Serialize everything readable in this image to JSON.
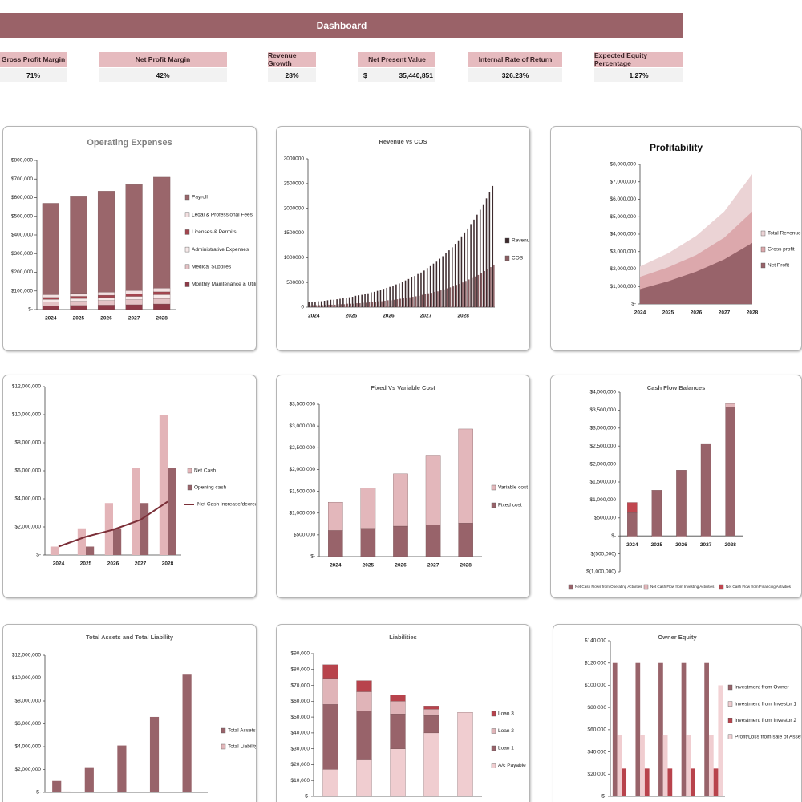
{
  "dashboard": {
    "title": "Dashboard",
    "kpis": [
      {
        "label": "Gross Profit Margin",
        "value": "71%"
      },
      {
        "label": "Net Profit Margin",
        "value": "42%"
      },
      {
        "label": "Revenue Growth",
        "value": "28%"
      },
      {
        "label": "Net Present Value",
        "currency": "$",
        "value": "35,440,851"
      },
      {
        "label": "Internal Rate of Return",
        "value": "326.23%"
      },
      {
        "label": "Expected Equity Percentage",
        "value": "1.27%"
      }
    ]
  },
  "chart_data": [
    {
      "type": "bar",
      "title": "Operating Expenses",
      "stacked": true,
      "legend": "right",
      "categories": [
        "2024",
        "2025",
        "2026",
        "2027",
        "2028"
      ],
      "series": [
        {
          "name": "Monthly Maintenance & Utilities",
          "color": "#8e3a48",
          "values": [
            20000,
            22000,
            24000,
            26000,
            30000
          ]
        },
        {
          "name": "Medical Supplies",
          "color": "#e4c2c5",
          "values": [
            20000,
            22000,
            24000,
            27000,
            30000
          ]
        },
        {
          "name": "Administrative Expenses",
          "color": "#f7eaea",
          "values": [
            15000,
            16000,
            17000,
            18000,
            20000
          ]
        },
        {
          "name": "Licenses & Permits",
          "color": "#a4454f",
          "values": [
            10000,
            11000,
            12000,
            13000,
            15000
          ]
        },
        {
          "name": "Legal & Professional Fees",
          "color": "#f3e0e1",
          "values": [
            15000,
            16000,
            17000,
            18000,
            20000
          ]
        },
        {
          "name": "Payroll",
          "color": "#9a666b",
          "values": [
            490000,
            518000,
            541000,
            568000,
            595000
          ]
        }
      ],
      "ylim": [
        0,
        800000
      ],
      "yticks": [
        {
          "value": 0,
          "label": "$-"
        },
        {
          "value": 100000,
          "label": "$100,000"
        },
        {
          "value": 200000,
          "label": "$200,000"
        },
        {
          "value": 300000,
          "label": "$300,000"
        },
        {
          "value": 400000,
          "label": "$400,000"
        },
        {
          "value": 500000,
          "label": "$500,000"
        },
        {
          "value": 600000,
          "label": "$600,000"
        },
        {
          "value": 700000,
          "label": "$700,000"
        },
        {
          "value": 800000,
          "label": "$800,000"
        }
      ]
    },
    {
      "type": "bar",
      "title": "Revenue vs COS",
      "stacked": false,
      "legend": "right",
      "categories": [
        "2024",
        null,
        null,
        null,
        null,
        null,
        null,
        null,
        null,
        null,
        null,
        null,
        "2025",
        null,
        null,
        null,
        null,
        null,
        null,
        null,
        null,
        null,
        null,
        null,
        "2026",
        null,
        null,
        null,
        null,
        null,
        null,
        null,
        null,
        null,
        null,
        null,
        "2027",
        null,
        null,
        null,
        null,
        null,
        null,
        null,
        null,
        null,
        null,
        null,
        "2028",
        null,
        null,
        null,
        null,
        null,
        null,
        null,
        null,
        null,
        null,
        null
      ],
      "series": [
        {
          "name": "Revenue",
          "color": "#3d2b2e",
          "values": [
            100000,
            110000,
            110000,
            120000,
            120000,
            130000,
            140000,
            150000,
            150000,
            160000,
            170000,
            180000,
            190000,
            200000,
            210000,
            230000,
            240000,
            250000,
            270000,
            280000,
            300000,
            310000,
            330000,
            350000,
            370000,
            390000,
            410000,
            430000,
            460000,
            480000,
            510000,
            540000,
            570000,
            600000,
            630000,
            670000,
            700000,
            740000,
            790000,
            830000,
            880000,
            920000,
            980000,
            1030000,
            1090000,
            1150000,
            1210000,
            1280000,
            1350000,
            1430000,
            1510000,
            1590000,
            1680000,
            1770000,
            1870000,
            1970000,
            2080000,
            2200000,
            2320000,
            2450000
          ]
        },
        {
          "name": "COS",
          "color": "#8b5e62",
          "values": [
            40000,
            40000,
            40000,
            40000,
            40000,
            50000,
            50000,
            50000,
            50000,
            60000,
            60000,
            60000,
            70000,
            70000,
            70000,
            80000,
            80000,
            90000,
            90000,
            100000,
            110000,
            110000,
            120000,
            120000,
            130000,
            140000,
            140000,
            150000,
            160000,
            170000,
            180000,
            190000,
            200000,
            210000,
            220000,
            230000,
            250000,
            260000,
            280000,
            290000,
            310000,
            320000,
            340000,
            360000,
            380000,
            400000,
            420000,
            450000,
            470000,
            500000,
            530000,
            560000,
            590000,
            620000,
            650000,
            690000,
            730000,
            770000,
            810000,
            860000
          ]
        }
      ],
      "ylim": [
        0,
        3000000
      ],
      "yticks": [
        0,
        500000,
        1000000,
        1500000,
        2000000,
        2500000,
        3000000
      ]
    },
    {
      "type": "area",
      "title": "Profitability",
      "legend": "right",
      "categories": [
        "2024",
        "2025",
        "2026",
        "2027",
        "2028"
      ],
      "series": [
        {
          "name": "Total Revenue",
          "color": "#ebd3d5",
          "values": [
            2150000,
            2900000,
            3900000,
            5300000,
            7450000
          ]
        },
        {
          "name": "Gross profit",
          "color": "#dca8ac",
          "values": [
            1550000,
            2100000,
            2800000,
            3800000,
            5300000
          ]
        },
        {
          "name": "Net Profit",
          "color": "#98636a",
          "values": [
            850000,
            1300000,
            1850000,
            2550000,
            3500000
          ]
        }
      ],
      "ylim": [
        0,
        8000000
      ],
      "yticks": [
        {
          "value": 0,
          "label": "$-"
        },
        {
          "value": 1000000,
          "label": "$1,000,000"
        },
        {
          "value": 2000000,
          "label": "$2,000,000"
        },
        {
          "value": 3000000,
          "label": "$3,000,000"
        },
        {
          "value": 4000000,
          "label": "$4,000,000"
        },
        {
          "value": 5000000,
          "label": "$5,000,000"
        },
        {
          "value": 6000000,
          "label": "$6,000,000"
        },
        {
          "value": 7000000,
          "label": "$7,000,000"
        },
        {
          "value": 8000000,
          "label": "$8,000,000"
        }
      ]
    },
    {
      "type": "bar",
      "stacked": false,
      "legend": "right",
      "categories": [
        "2024",
        "2025",
        "2026",
        "2027",
        "2028"
      ],
      "series": [
        {
          "name": "Net Cash",
          "color": "#e3b4b8",
          "values": [
            600000,
            1900000,
            3700000,
            6200000,
            10000000
          ]
        },
        {
          "name": "Opening cash",
          "color": "#98636a",
          "values": [
            0,
            600000,
            1900000,
            3700000,
            6200000
          ]
        },
        {
          "name": "Net Cash Increase/decrease",
          "type": "line",
          "color": "#7b2f38",
          "values": [
            600000,
            1300000,
            1800000,
            2500000,
            3800000
          ]
        }
      ],
      "ylim": [
        0,
        12000000
      ],
      "yticks": [
        {
          "value": 0,
          "label": "$-"
        },
        {
          "value": 2000000,
          "label": "$2,000,000"
        },
        {
          "value": 4000000,
          "label": "$4,000,000"
        },
        {
          "value": 6000000,
          "label": "$6,000,000"
        },
        {
          "value": 8000000,
          "label": "$8,000,000"
        },
        {
          "value": 10000000,
          "label": "$10,000,000"
        },
        {
          "value": 12000000,
          "label": "$12,000,000"
        }
      ]
    },
    {
      "type": "bar",
      "title": "Fixed Vs Variable Cost",
      "stacked": true,
      "legend": "right",
      "categories": [
        "2024",
        "2025",
        "2026",
        "2027",
        "2028"
      ],
      "series": [
        {
          "name": "Fixed cost",
          "color": "#98636a",
          "values": [
            600000,
            650000,
            700000,
            730000,
            770000
          ]
        },
        {
          "name": "Variable cost",
          "color": "#e3b7bb",
          "values": [
            650000,
            920000,
            1200000,
            1600000,
            2160000
          ]
        }
      ],
      "ylim": [
        0,
        3500000
      ],
      "yticks": [
        {
          "value": 0,
          "label": "$-"
        },
        {
          "value": 500000,
          "label": "$500,000"
        },
        {
          "value": 1000000,
          "label": "$1,000,000"
        },
        {
          "value": 1500000,
          "label": "$1,500,000"
        },
        {
          "value": 2000000,
          "label": "$2,000,000"
        },
        {
          "value": 2500000,
          "label": "$2,500,000"
        },
        {
          "value": 3000000,
          "label": "$3,000,000"
        },
        {
          "value": 3500000,
          "label": "$3,500,000"
        }
      ]
    },
    {
      "type": "bar",
      "title": "Cash Flow Balances",
      "stacked": true,
      "legend": "bottom",
      "categories": [
        "2024",
        "2025",
        "2026",
        "2027",
        "2028"
      ],
      "series": [
        {
          "name": "Net Cash Flows from Operating Activities",
          "color": "#98636a",
          "values": [
            650000,
            1270000,
            1830000,
            2570000,
            3580000
          ]
        },
        {
          "name": "Net Cash Flow from Investing Activities",
          "color": "#e3b7bb",
          "values": [
            -20000,
            -30000,
            -30000,
            -30000,
            100000
          ]
        },
        {
          "name": "Net Cash Flow from Financing Activities",
          "color": "#c1464f",
          "values": [
            280000,
            0,
            0,
            0,
            0
          ]
        }
      ],
      "ylim": [
        -1000000,
        4000000
      ],
      "yticks": [
        {
          "value": -1000000,
          "label": "$(1,000,000)"
        },
        {
          "value": -500000,
          "label": "$(500,000)"
        },
        {
          "value": 0,
          "label": "$-"
        },
        {
          "value": 500000,
          "label": "$500,000"
        },
        {
          "value": 1000000,
          "label": "$1,000,000"
        },
        {
          "value": 1500000,
          "label": "$1,500,000"
        },
        {
          "value": 2000000,
          "label": "$2,000,000"
        },
        {
          "value": 2500000,
          "label": "$2,500,000"
        },
        {
          "value": 3000000,
          "label": "$3,000,000"
        },
        {
          "value": 3500000,
          "label": "$3,500,000"
        },
        {
          "value": 4000000,
          "label": "$4,000,000"
        }
      ]
    },
    {
      "type": "bar",
      "title": "Total Assets and Total Liability",
      "stacked": false,
      "legend": "right",
      "categories": [
        null,
        null,
        null,
        null,
        null
      ],
      "series": [
        {
          "name": "Total Assets",
          "color": "#98636a",
          "values": [
            1000000,
            2200000,
            4100000,
            6600000,
            10300000
          ]
        },
        {
          "name": "Total Liability",
          "color": "#e3b7bb",
          "values": [
            80000,
            70000,
            60000,
            55000,
            50000
          ]
        }
      ],
      "ylim": [
        0,
        12000000
      ],
      "yticks": [
        {
          "value": 0,
          "label": "$-"
        },
        {
          "value": 2000000,
          "label": "$2,000,000"
        },
        {
          "value": 4000000,
          "label": "$4,000,000"
        },
        {
          "value": 6000000,
          "label": "$6,000,000"
        },
        {
          "value": 8000000,
          "label": "$8,000,000"
        },
        {
          "value": 10000000,
          "label": "$10,000,000"
        },
        {
          "value": 12000000,
          "label": "$12,000,000"
        }
      ]
    },
    {
      "type": "bar",
      "title": "Liabilities",
      "stacked": true,
      "legend": "right",
      "categories": [
        null,
        null,
        null,
        null,
        null
      ],
      "series": [
        {
          "name": "A/c Payable",
          "color": "#f0cdd0",
          "values": [
            17000,
            23000,
            30000,
            40000,
            53000
          ]
        },
        {
          "name": "Loan 1",
          "color": "#98636a",
          "values": [
            41000,
            31000,
            22000,
            11000,
            0
          ]
        },
        {
          "name": "Loan 2",
          "color": "#e0b4b8",
          "values": [
            16000,
            12000,
            8000,
            4000,
            0
          ]
        },
        {
          "name": "Loan 3",
          "color": "#b8434c",
          "values": [
            9000,
            7000,
            4000,
            2000,
            0
          ]
        }
      ],
      "ylim": [
        0,
        90000
      ],
      "yticks": [
        {
          "value": 0,
          "label": "$-"
        },
        {
          "value": 10000,
          "label": "$10,000"
        },
        {
          "value": 20000,
          "label": "$20,000"
        },
        {
          "value": 30000,
          "label": "$30,000"
        },
        {
          "value": 40000,
          "label": "$40,000"
        },
        {
          "value": 50000,
          "label": "$50,000"
        },
        {
          "value": 60000,
          "label": "$60,000"
        },
        {
          "value": 70000,
          "label": "$70,000"
        },
        {
          "value": 80000,
          "label": "$80,000"
        },
        {
          "value": 90000,
          "label": "$90,000"
        }
      ]
    },
    {
      "type": "bar",
      "title": "Owner Equity",
      "stacked": false,
      "legend": "right",
      "categories": [
        null,
        null,
        null,
        null,
        null
      ],
      "series": [
        {
          "name": "Investment from Owner",
          "color": "#98636a",
          "values": [
            120000,
            120000,
            120000,
            120000,
            120000
          ]
        },
        {
          "name": "Investment from Investor 1",
          "color": "#f0cdd0",
          "values": [
            55000,
            55000,
            55000,
            55000,
            55000
          ]
        },
        {
          "name": "Investment from Investor 2",
          "color": "#b8434c",
          "values": [
            25000,
            25000,
            25000,
            25000,
            25000
          ]
        },
        {
          "name": "Profit/Loss from sale of Assets",
          "color": "#f2d2d5",
          "values": [
            0,
            0,
            0,
            0,
            100000
          ]
        }
      ],
      "ylim": [
        0,
        140000
      ],
      "yticks": [
        {
          "value": 0,
          "label": "$-"
        },
        {
          "value": 20000,
          "label": "$20,000"
        },
        {
          "value": 40000,
          "label": "$40,000"
        },
        {
          "value": 60000,
          "label": "$60,000"
        },
        {
          "value": 80000,
          "label": "$80,000"
        },
        {
          "value": 100000,
          "label": "$100,000"
        },
        {
          "value": 120000,
          "label": "$120,000"
        },
        {
          "value": 140000,
          "label": "$140,000"
        }
      ]
    }
  ]
}
